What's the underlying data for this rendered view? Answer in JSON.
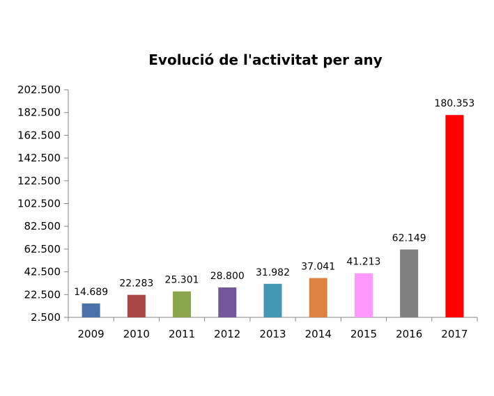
{
  "chart_data": {
    "type": "bar",
    "title": "Evolució de l'activitat per any",
    "xlabel": "",
    "ylabel": "",
    "categories": [
      "2009",
      "2010",
      "2011",
      "2012",
      "2013",
      "2014",
      "2015",
      "2016",
      "2017"
    ],
    "values": [
      14689,
      22283,
      25301,
      28800,
      31982,
      37041,
      41213,
      62149,
      180353
    ],
    "value_labels": [
      "14.689",
      "22.283",
      "25.301",
      "28.800",
      "31.982",
      "37.041",
      "41.213",
      "62.149",
      "180.353"
    ],
    "colors": [
      "#4a72a8",
      "#aa4644",
      "#8aa54a",
      "#71589a",
      "#4299b1",
      "#db843d",
      "#ff99ff",
      "#808080",
      "#ff0000"
    ],
    "ylim": [
      2500,
      202500
    ],
    "yticks": [
      2500,
      22500,
      42500,
      62500,
      82500,
      102500,
      122500,
      142500,
      162500,
      182500,
      202500
    ],
    "ytick_labels": [
      "2.500",
      "22.500",
      "42.500",
      "62.500",
      "82.500",
      "102.500",
      "122.500",
      "142.500",
      "162.500",
      "182.500",
      "202.500"
    ],
    "grid": false,
    "legend": "none"
  }
}
